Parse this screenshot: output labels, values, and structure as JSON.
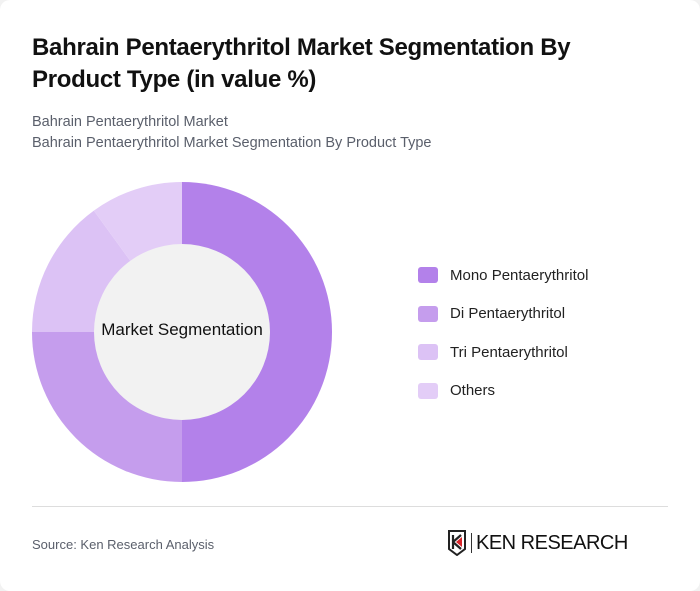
{
  "header": {
    "title": "Bahrain Pentaerythritol Market Segmentation By Product Type (in value %)",
    "subtitle_line1": "Bahrain Pentaerythritol Market",
    "subtitle_line2": "Bahrain Pentaerythritol Market Segmentation By Product Type"
  },
  "chart_data": {
    "type": "pie",
    "variant": "donut",
    "title": "Bahrain Pentaerythritol Market Segmentation By Product Type (in value %)",
    "center_label": "Market Segmentation",
    "categories": [
      "Mono Pentaerythritol",
      "Di Pentaerythritol",
      "Tri Pentaerythritol",
      "Others"
    ],
    "values": [
      50,
      25,
      15,
      10
    ],
    "colors": [
      "#b381ea",
      "#c59ded",
      "#dcc2f5",
      "#e3cdf7"
    ],
    "legend_position": "right"
  },
  "legend": {
    "items": [
      {
        "label": "Mono Pentaerythritol",
        "color": "#b381ea"
      },
      {
        "label": "Di Pentaerythritol",
        "color": "#c59ded"
      },
      {
        "label": "Tri Pentaerythritol",
        "color": "#dcc2f5"
      },
      {
        "label": "Others",
        "color": "#e3cdf7"
      }
    ]
  },
  "footer": {
    "source": "Source: Ken Research Analysis",
    "logo_text": "KEN RESEARCH"
  }
}
